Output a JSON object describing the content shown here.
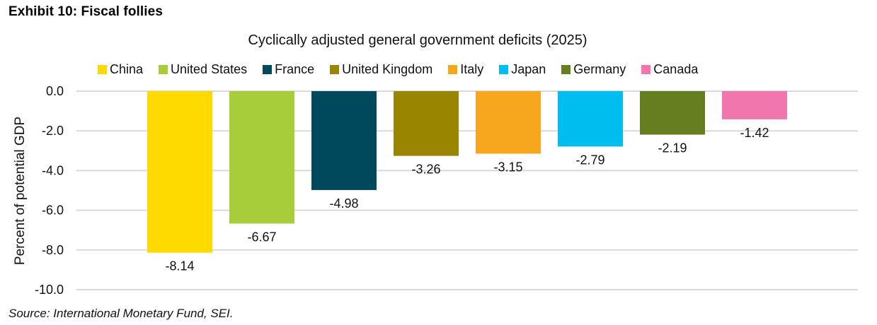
{
  "exhibit_title": "Exhibit 10: Fiscal follies",
  "source": "Source: International Monetary Fund, SEI.",
  "chart_data": {
    "type": "bar",
    "title": "Cyclically adjusted general government deficits (2025)",
    "xlabel": "",
    "ylabel": "Percent of potential GDP",
    "ylim": [
      -10.0,
      0.0
    ],
    "yticks": [
      "0.0",
      "-2.0",
      "-4.0",
      "-6.0",
      "-8.0",
      "-10.0"
    ],
    "ytick_values": [
      0,
      -2,
      -4,
      -6,
      -8,
      -10
    ],
    "grid": true,
    "legend_position": "top",
    "categories": [
      "China",
      "United States",
      "France",
      "United Kingdom",
      "Italy",
      "Japan",
      "Germany",
      "Canada"
    ],
    "values": [
      -8.14,
      -6.67,
      -4.98,
      -3.26,
      -3.15,
      -2.79,
      -2.19,
      -1.42
    ],
    "data_labels": [
      "-8.14",
      "-6.67",
      "-4.98",
      "-3.26",
      "-3.15",
      "-2.79",
      "-2.19",
      "-1.42"
    ],
    "colors": [
      "#FFDA00",
      "#A8CD3A",
      "#00485C",
      "#9A8500",
      "#F6A71D",
      "#00BDEF",
      "#667D20",
      "#F076AD"
    ]
  }
}
